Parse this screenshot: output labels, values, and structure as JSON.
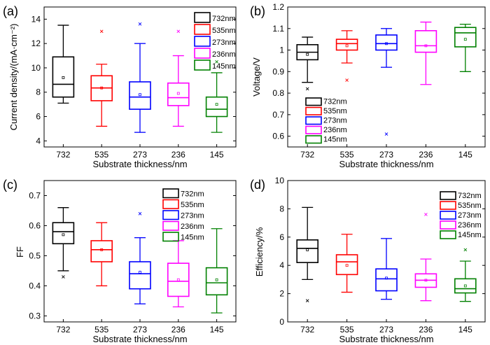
{
  "chart_data": [
    {
      "type": "box",
      "panel_label": "(a)",
      "xlabel": "Substrate thickness/nm",
      "ylabel": "Current density/(mA·cm⁻²)",
      "ylim": [
        3.5,
        15
      ],
      "yticks": [
        4,
        6,
        8,
        10,
        12,
        14
      ],
      "legend_position": "top-right",
      "categories": [
        "732",
        "535",
        "273",
        "236",
        "145"
      ],
      "series": [
        {
          "name": "732nm",
          "color": "#000000",
          "min": 7.1,
          "q1": 7.6,
          "median": 8.65,
          "q3": 10.9,
          "max": 13.5,
          "mean": 9.2,
          "outliers": []
        },
        {
          "name": "535nm",
          "color": "#ff0000",
          "min": 5.2,
          "q1": 7.3,
          "median": 8.35,
          "q3": 9.35,
          "max": 10.3,
          "mean": 8.35,
          "outliers": [
            13.0
          ]
        },
        {
          "name": "273nm",
          "color": "#0000ff",
          "min": 4.7,
          "q1": 6.6,
          "median": 7.6,
          "q3": 8.85,
          "max": 12.0,
          "mean": 7.8,
          "outliers": [
            13.6
          ]
        },
        {
          "name": "236nm",
          "color": "#ff00ff",
          "min": 5.2,
          "q1": 6.9,
          "median": 7.55,
          "q3": 8.75,
          "max": 11.0,
          "mean": 7.9,
          "outliers": [
            13.0
          ]
        },
        {
          "name": "145nm",
          "color": "#008000",
          "min": 4.7,
          "q1": 6.0,
          "median": 6.6,
          "q3": 7.6,
          "max": 9.6,
          "mean": 7.0,
          "outliers": [
            10.5
          ]
        }
      ]
    },
    {
      "type": "box",
      "panel_label": "(b)",
      "xlabel": "Substrate thickness/nm",
      "ylabel": "Voltage/V",
      "ylim": [
        0.55,
        1.2
      ],
      "yticks": [
        0.6,
        0.7,
        0.8,
        0.9,
        1.0,
        1.1,
        1.2
      ],
      "legend_position": "bottom-left",
      "categories": [
        "732",
        "535",
        "273",
        "236",
        "145"
      ],
      "series": [
        {
          "name": "732nm",
          "color": "#000000",
          "min": 0.85,
          "q1": 0.955,
          "median": 0.99,
          "q3": 1.025,
          "max": 1.06,
          "mean": 0.98,
          "outliers": [
            0.82
          ]
        },
        {
          "name": "535nm",
          "color": "#ff0000",
          "min": 0.94,
          "q1": 1.0,
          "median": 1.03,
          "q3": 1.05,
          "max": 1.09,
          "mean": 1.02,
          "outliers": [
            0.86
          ]
        },
        {
          "name": "273nm",
          "color": "#0000ff",
          "min": 0.92,
          "q1": 1.0,
          "median": 1.03,
          "q3": 1.07,
          "max": 1.1,
          "mean": 1.03,
          "outliers": [
            0.61
          ]
        },
        {
          "name": "236nm",
          "color": "#ff00ff",
          "min": 0.84,
          "q1": 0.99,
          "median": 1.02,
          "q3": 1.09,
          "max": 1.13,
          "mean": 1.02,
          "outliers": []
        },
        {
          "name": "145nm",
          "color": "#008000",
          "min": 0.9,
          "q1": 1.015,
          "median": 1.08,
          "q3": 1.105,
          "max": 1.12,
          "mean": 1.05,
          "outliers": []
        }
      ]
    },
    {
      "type": "box",
      "panel_label": "(c)",
      "xlabel": "Substrate thickness/nm",
      "ylabel": "FF",
      "ylim": [
        0.28,
        0.75
      ],
      "yticks": [
        0.3,
        0.4,
        0.5,
        0.6,
        0.7
      ],
      "legend_position": "top-right",
      "categories": [
        "732",
        "535",
        "273",
        "236",
        "145"
      ],
      "series": [
        {
          "name": "732nm",
          "color": "#000000",
          "min": 0.45,
          "q1": 0.54,
          "median": 0.58,
          "q3": 0.61,
          "max": 0.66,
          "mean": 0.57,
          "outliers": [
            0.43
          ]
        },
        {
          "name": "535nm",
          "color": "#ff0000",
          "min": 0.4,
          "q1": 0.48,
          "median": 0.52,
          "q3": 0.55,
          "max": 0.61,
          "mean": 0.52,
          "outliers": []
        },
        {
          "name": "273nm",
          "color": "#0000ff",
          "min": 0.34,
          "q1": 0.39,
          "median": 0.44,
          "q3": 0.48,
          "max": 0.56,
          "mean": 0.445,
          "outliers": [
            0.64
          ]
        },
        {
          "name": "236nm",
          "color": "#ff00ff",
          "min": 0.33,
          "q1": 0.365,
          "median": 0.415,
          "q3": 0.475,
          "max": 0.55,
          "mean": 0.42,
          "outliers": []
        },
        {
          "name": "145nm",
          "color": "#008000",
          "min": 0.31,
          "q1": 0.37,
          "median": 0.41,
          "q3": 0.46,
          "max": 0.59,
          "mean": 0.42,
          "outliers": []
        }
      ]
    },
    {
      "type": "box",
      "panel_label": "(d)",
      "xlabel": "Substrate thickness/nm",
      "ylabel": "Efficiency/%",
      "ylim": [
        0,
        10
      ],
      "yticks": [
        0,
        2,
        4,
        6,
        8,
        10
      ],
      "legend_position": "top-right",
      "categories": [
        "732",
        "535",
        "273",
        "236",
        "145"
      ],
      "series": [
        {
          "name": "732nm",
          "color": "#000000",
          "min": 3.0,
          "q1": 4.2,
          "median": 5.2,
          "q3": 5.8,
          "max": 8.1,
          "mean": 5.1,
          "outliers": [
            1.5
          ]
        },
        {
          "name": "535nm",
          "color": "#ff0000",
          "min": 2.1,
          "q1": 3.35,
          "median": 4.25,
          "q3": 4.75,
          "max": 6.2,
          "mean": 4.0,
          "outliers": []
        },
        {
          "name": "273nm",
          "color": "#0000ff",
          "min": 1.6,
          "q1": 2.2,
          "median": 3.05,
          "q3": 3.75,
          "max": 5.9,
          "mean": 3.1,
          "outliers": []
        },
        {
          "name": "236nm",
          "color": "#ff00ff",
          "min": 1.5,
          "q1": 2.45,
          "median": 2.95,
          "q3": 3.4,
          "max": 4.45,
          "mean": 2.95,
          "outliers": [
            7.6
          ]
        },
        {
          "name": "145nm",
          "color": "#008000",
          "min": 1.45,
          "q1": 2.05,
          "median": 2.35,
          "q3": 3.05,
          "max": 4.3,
          "mean": 2.55,
          "outliers": [
            5.1
          ]
        }
      ]
    }
  ]
}
